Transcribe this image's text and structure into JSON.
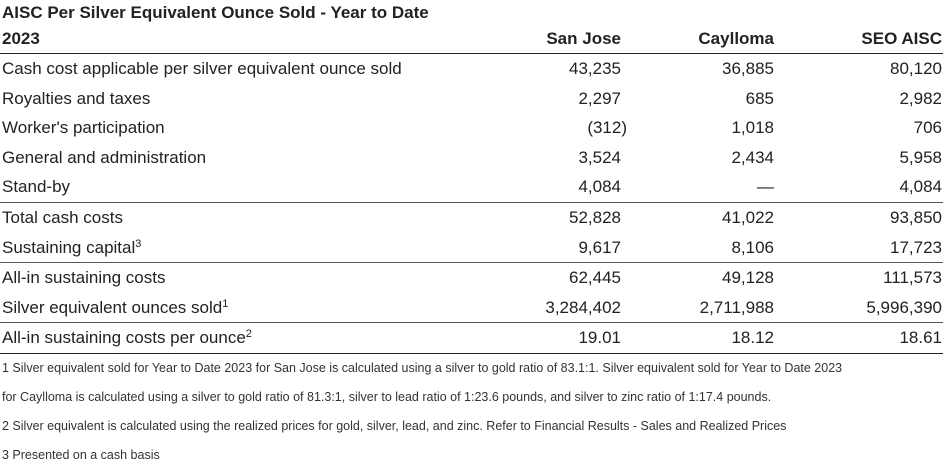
{
  "title": "AISC Per Silver Equivalent Ounce Sold - Year to Date 2023",
  "columns": [
    "San Jose",
    "Caylloma",
    "SEO AISC"
  ],
  "rows": [
    {
      "label": "Cash cost applicable per silver equivalent ounce sold",
      "sup": "",
      "values": [
        "43,235",
        "36,885",
        "80,120"
      ]
    },
    {
      "label": "Royalties and taxes",
      "sup": "",
      "values": [
        "2,297",
        "685",
        "2,982"
      ]
    },
    {
      "label": "Worker's participation",
      "sup": "",
      "values": [
        "(312)",
        "1,018",
        "706"
      ]
    },
    {
      "label": "General and administration",
      "sup": "",
      "values": [
        "3,524",
        "2,434",
        "5,958"
      ]
    },
    {
      "label": "Stand-by",
      "sup": "",
      "values": [
        "4,084",
        "—",
        "4,084"
      ]
    },
    {
      "label": "Total cash costs",
      "sup": "",
      "values": [
        "52,828",
        "41,022",
        "93,850"
      ]
    },
    {
      "label": "Sustaining capital",
      "sup": "3",
      "values": [
        "9,617",
        "8,106",
        "17,723"
      ]
    },
    {
      "label": "All-in sustaining costs",
      "sup": "",
      "values": [
        "62,445",
        "49,128",
        "111,573"
      ]
    },
    {
      "label": "Silver equivalent ounces sold",
      "sup": "1",
      "values": [
        "3,284,402",
        "2,711,988",
        "5,996,390"
      ]
    },
    {
      "label": "All-in sustaining costs per ounce",
      "sup": "2",
      "values": [
        "19.01",
        "18.12",
        "18.61"
      ]
    }
  ],
  "footnotes": [
    "1 Silver equivalent sold for Year to Date 2023 for San Jose is calculated using a silver to gold ratio of 83.1:1. Silver equivalent sold for Year to Date 2023",
    "for Caylloma is calculated using a silver to gold ratio of 81.3:1, silver to lead ratio of 1:23.6 pounds, and silver to zinc ratio of 1:17.4 pounds.",
    "2 Silver equivalent is calculated using the realized prices for gold, silver, lead, and zinc. Refer to Financial Results - Sales and Realized Prices",
    "3 Presented on a cash basis"
  ]
}
